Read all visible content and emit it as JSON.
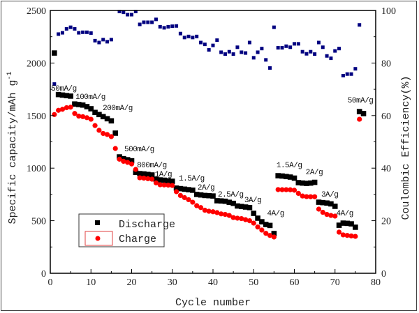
{
  "chart_data": {
    "type": "scatter",
    "xlabel": "Cycle number",
    "ylabel": "Specific capacity/mAh g",
    "ylabel_sup": "-1",
    "y2label": "Coulombic Efficiency(%)",
    "xlim": [
      0,
      80
    ],
    "ylim": [
      0,
      2500
    ],
    "y2lim": [
      0,
      100
    ],
    "xticks": [
      0,
      10,
      20,
      30,
      40,
      50,
      60,
      70,
      80
    ],
    "yticks": [
      0,
      500,
      1000,
      1500,
      2000,
      2500
    ],
    "y2ticks": [
      0,
      20,
      40,
      60,
      80,
      100
    ],
    "grid": false,
    "legend_placement": "lower-left",
    "series": [
      {
        "name": "Discharge",
        "axis": "left",
        "marker": "square",
        "color": "#000000",
        "x": [
          1,
          2,
          3,
          4,
          5,
          6,
          7,
          8,
          9,
          10,
          11,
          12,
          13,
          14,
          15,
          16,
          17,
          18,
          19,
          20,
          21,
          22,
          23,
          24,
          25,
          26,
          27,
          28,
          29,
          30,
          31,
          32,
          33,
          34,
          35,
          36,
          37,
          38,
          39,
          40,
          41,
          42,
          43,
          44,
          45,
          46,
          47,
          48,
          49,
          50,
          51,
          52,
          53,
          54,
          55,
          56,
          57,
          58,
          59,
          60,
          61,
          62,
          63,
          64,
          65,
          66,
          67,
          68,
          69,
          70,
          71,
          72,
          73,
          74,
          75,
          76,
          77
        ],
        "values": [
          2095,
          1700,
          1695,
          1690,
          1685,
          1610,
          1605,
          1600,
          1585,
          1565,
          1530,
          1510,
          1490,
          1470,
          1450,
          1333,
          1107,
          1090,
          1080,
          1070,
          960,
          948,
          945,
          940,
          935,
          895,
          888,
          885,
          880,
          875,
          810,
          805,
          800,
          795,
          790,
          750,
          745,
          740,
          738,
          735,
          690,
          688,
          685,
          675,
          665,
          640,
          635,
          630,
          625,
          570,
          524,
          490,
          464,
          455,
          378,
          928,
          925,
          920,
          915,
          905,
          862,
          858,
          855,
          858,
          865,
          676,
          672,
          668,
          660,
          637,
          457,
          477,
          475,
          470,
          438,
          1538,
          1519
        ]
      },
      {
        "name": "Charge",
        "axis": "left",
        "marker": "circle",
        "color": "#ff0000",
        "x": [
          1,
          2,
          3,
          4,
          5,
          6,
          7,
          8,
          9,
          10,
          11,
          12,
          13,
          14,
          15,
          16,
          17,
          18,
          19,
          20,
          21,
          22,
          23,
          24,
          25,
          26,
          27,
          28,
          29,
          30,
          31,
          32,
          33,
          34,
          35,
          36,
          37,
          38,
          39,
          40,
          41,
          42,
          43,
          44,
          45,
          46,
          47,
          48,
          49,
          50,
          51,
          52,
          53,
          54,
          55,
          56,
          57,
          58,
          59,
          60,
          61,
          62,
          63,
          64,
          65,
          66,
          67,
          68,
          69,
          70,
          71,
          72,
          73,
          74,
          75,
          76
        ],
        "values": [
          1510,
          1550,
          1560,
          1575,
          1580,
          1520,
          1495,
          1490,
          1480,
          1465,
          1405,
          1360,
          1330,
          1320,
          1300,
          1187,
          1085,
          1065,
          1055,
          1040,
          988,
          908,
          905,
          900,
          895,
          860,
          842,
          840,
          838,
          835,
          776,
          740,
          720,
          700,
          676,
          643,
          625,
          600,
          590,
          585,
          577,
          565,
          560,
          550,
          530,
          524,
          520,
          510,
          500,
          477,
          440,
          411,
          380,
          360,
          345,
          796,
          795,
          795,
          794,
          790,
          760,
          735,
          729,
          728,
          728,
          610,
          580,
          560,
          550,
          544,
          391,
          365,
          360,
          355,
          351,
          1465
        ]
      },
      {
        "name": "",
        "axis": "right",
        "marker": "square-small",
        "color": "#000080",
        "x": [
          1,
          2,
          3,
          4,
          5,
          6,
          7,
          8,
          9,
          10,
          11,
          12,
          13,
          14,
          15,
          17,
          18,
          19,
          20,
          21,
          22,
          23,
          24,
          25,
          26,
          27,
          28,
          29,
          30,
          31,
          32,
          33,
          34,
          35,
          36,
          37,
          38,
          39,
          40,
          41,
          42,
          43,
          44,
          45,
          46,
          47,
          48,
          49,
          50,
          51,
          52,
          53,
          54,
          55,
          56,
          57,
          58,
          59,
          60,
          61,
          62,
          63,
          64,
          65,
          66,
          67,
          68,
          69,
          70,
          71,
          72,
          73,
          74,
          75,
          76
        ],
        "values": [
          72,
          91,
          91.5,
          93,
          93.6,
          93,
          91.5,
          91.7,
          91.7,
          91.4,
          88.5,
          87.8,
          88.9,
          88.1,
          88.9,
          99.6,
          99.3,
          98.4,
          98.4,
          99.6,
          94.7,
          95.5,
          95.5,
          95.5,
          96.6,
          93.8,
          93.4,
          93.8,
          94,
          94.1,
          91.2,
          89.7,
          90.1,
          89.7,
          90.1,
          87.8,
          87.1,
          85,
          86.7,
          88.7,
          84.1,
          83.4,
          84.3,
          83.4,
          86,
          84.1,
          83.8,
          87.8,
          82,
          84.1,
          85.5,
          81.2,
          78.1,
          93.6,
          85.8,
          85.8,
          86.4,
          86,
          87.3,
          87.3,
          84.3,
          83.5,
          84.3,
          83.4,
          87.8,
          86,
          82.7,
          81.8,
          84.6,
          85.5,
          75.2,
          75.8,
          75.8,
          77.8,
          94.5
        ]
      }
    ],
    "annotations": [
      {
        "text": "50mA/g",
        "x": 0.2,
        "y": 1737
      },
      {
        "text": "100mA/g",
        "x": 6.2,
        "y": 1658
      },
      {
        "text": "200mA/g",
        "x": 12.9,
        "y": 1552
      },
      {
        "text": "500mA/g",
        "x": 18.2,
        "y": 1160
      },
      {
        "text": "800mA/g",
        "x": 21.3,
        "y": 1008
      },
      {
        "text": "1A/g",
        "x": 25.7,
        "y": 922
      },
      {
        "text": "1.5A/g",
        "x": 31.6,
        "y": 882
      },
      {
        "text": "2A/g",
        "x": 36.2,
        "y": 796
      },
      {
        "text": "2.5A/g",
        "x": 41.2,
        "y": 729
      },
      {
        "text": "3A/g",
        "x": 47.7,
        "y": 676
      },
      {
        "text": "4A/g",
        "x": 53.3,
        "y": 550
      },
      {
        "text": "1.5A/g",
        "x": 55.6,
        "y": 1008
      },
      {
        "text": "2A/g",
        "x": 62.8,
        "y": 942
      },
      {
        "text": "3A/g",
        "x": 66.6,
        "y": 729
      },
      {
        "text": "4A/g",
        "x": 70.3,
        "y": 550
      },
      {
        "text": "50mA/g",
        "x": 73.1,
        "y": 1625
      }
    ],
    "legend": [
      "Discharge",
      "Charge"
    ]
  }
}
